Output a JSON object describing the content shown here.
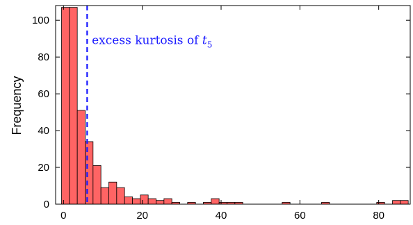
{
  "chart_data": {
    "type": "bar",
    "title": "",
    "xlabel": "",
    "ylabel": "Frequency",
    "xlim": [
      -2,
      88
    ],
    "ylim": [
      0,
      108
    ],
    "xticks": [
      0,
      20,
      40,
      60,
      80
    ],
    "yticks": [
      0,
      20,
      40,
      60,
      80,
      100
    ],
    "grid": false,
    "bar_color": "#ff6464",
    "bar_edge_color": "#000000",
    "bins": [
      {
        "start": -0.5,
        "end": 1.5,
        "value": 107
      },
      {
        "start": 1.5,
        "end": 3.5,
        "value": 107
      },
      {
        "start": 3.5,
        "end": 5.5,
        "value": 51
      },
      {
        "start": 5.5,
        "end": 7.5,
        "value": 34
      },
      {
        "start": 7.5,
        "end": 9.5,
        "value": 21
      },
      {
        "start": 9.5,
        "end": 11.5,
        "value": 9
      },
      {
        "start": 11.5,
        "end": 13.5,
        "value": 12
      },
      {
        "start": 13.5,
        "end": 15.5,
        "value": 9
      },
      {
        "start": 15.5,
        "end": 17.5,
        "value": 4
      },
      {
        "start": 17.5,
        "end": 19.5,
        "value": 3
      },
      {
        "start": 19.5,
        "end": 21.5,
        "value": 5
      },
      {
        "start": 21.5,
        "end": 23.5,
        "value": 3
      },
      {
        "start": 23.5,
        "end": 25.5,
        "value": 2
      },
      {
        "start": 25.5,
        "end": 27.5,
        "value": 3
      },
      {
        "start": 27.5,
        "end": 29.5,
        "value": 1
      },
      {
        "start": 31.5,
        "end": 33.5,
        "value": 1
      },
      {
        "start": 35.5,
        "end": 37.5,
        "value": 1
      },
      {
        "start": 37.5,
        "end": 39.5,
        "value": 3
      },
      {
        "start": 39.5,
        "end": 41.5,
        "value": 1
      },
      {
        "start": 41.5,
        "end": 43.5,
        "value": 1
      },
      {
        "start": 43.5,
        "end": 45.5,
        "value": 1
      },
      {
        "start": 55.5,
        "end": 57.5,
        "value": 1
      },
      {
        "start": 65.5,
        "end": 67.5,
        "value": 1
      },
      {
        "start": 79.5,
        "end": 81.5,
        "value": 1
      },
      {
        "start": 83.5,
        "end": 85.5,
        "value": 2
      },
      {
        "start": 85.5,
        "end": 87.5,
        "value": 2
      }
    ],
    "reference_line": {
      "x": 6,
      "color": "#1a1aff",
      "style": "dashed"
    },
    "annotation": {
      "text": "excess kurtosis of ",
      "math": "t",
      "subscript": "5",
      "x": 7.2,
      "y": 87,
      "color": "#1a1aff"
    }
  }
}
